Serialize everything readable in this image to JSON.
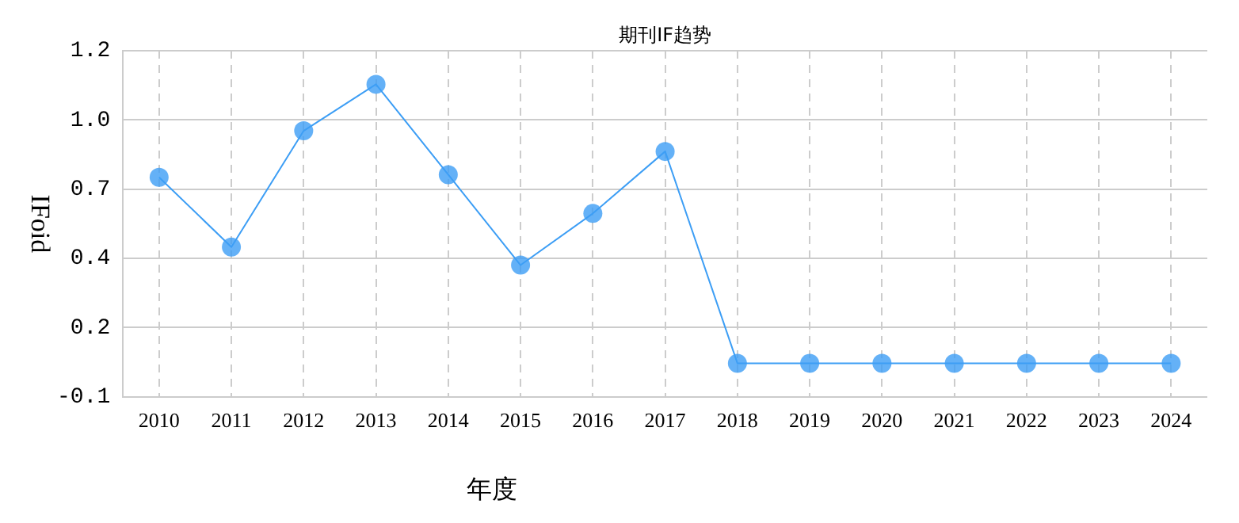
{
  "chart_data": {
    "type": "line",
    "title": "期刊IF趋势",
    "xlabel": "年度",
    "ylabel": "IFoid",
    "categories": [
      "2010",
      "2011",
      "2012",
      "2013",
      "2014",
      "2015",
      "2016",
      "2017",
      "2018",
      "2019",
      "2020",
      "2021",
      "2022",
      "2023",
      "2024"
    ],
    "series": [
      {
        "color": "#3d9ef5",
        "values": [
          0.75,
          0.48,
          0.93,
          1.11,
          0.76,
          0.41,
          0.61,
          0.85,
          0.03,
          0.03,
          0.03,
          0.03,
          0.03,
          0.03,
          0.03
        ]
      }
    ],
    "ylim": [
      -0.1,
      1.24
    ],
    "yticks": [
      {
        "value": -0.1,
        "label": "-0.1"
      },
      {
        "value": 0.168,
        "label": "0.2"
      },
      {
        "value": 0.436,
        "label": "0.4"
      },
      {
        "value": 0.704,
        "label": "0.7"
      },
      {
        "value": 0.972,
        "label": "1.0"
      },
      {
        "value": 1.24,
        "label": "1.2"
      }
    ],
    "grid": true,
    "legend": false,
    "marker": "circle",
    "line_style": "solid"
  }
}
